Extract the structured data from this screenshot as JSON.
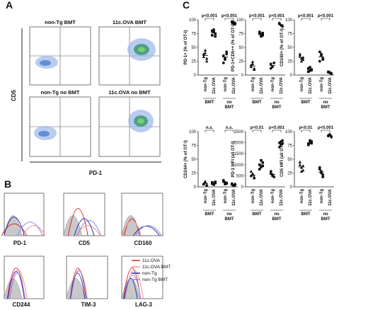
{
  "panel_labels": {
    "a": "A",
    "b": "B",
    "c": "C"
  },
  "flow": {
    "quadrant_titles": [
      "non-Tg BMT",
      "11c.OVA BMT",
      "non-Tg no BMT",
      "11c.OVA no BMT"
    ],
    "y_label": "CD5",
    "x_label": "PD-1"
  },
  "histograms": {
    "markers": [
      "PD-1",
      "CD5",
      "CD160",
      "CD244",
      "TIM-3",
      "LAG-3"
    ],
    "legend": [
      {
        "label": "11c.OVA",
        "color": "#d62728"
      },
      {
        "label": "11c.OVA BMT",
        "color": "#f28e8e"
      },
      {
        "label": "non-Tg",
        "color": "#2b2bb8"
      },
      {
        "label": "non-Tg BMT",
        "color": "#8888dd"
      }
    ]
  },
  "chart_data": [
    {
      "type": "scatter",
      "id": "pd1",
      "ylabel": "PD-1+ (% of OT-I)",
      "ylim": [
        0,
        100
      ],
      "yticks": [
        "0",
        "25",
        "50",
        "75",
        "100"
      ],
      "categories": [
        "non-Tg",
        "11c.OVA",
        "non-Tg",
        "11c.OVA"
      ],
      "groups": [
        "BMT",
        "no BMT"
      ],
      "significance": [
        "p<0.001",
        "p<0.001"
      ],
      "series": [
        {
          "values": [
            [
              38,
              45,
              30,
              33,
              40,
              25
            ],
            [
              80,
              78,
              75,
              72,
              82,
              70
            ],
            [
              35,
              28,
              42,
              22,
              30,
              38
            ],
            [
              95,
              96,
              94,
              97,
              93,
              92
            ]
          ]
        }
      ]
    },
    {
      "type": "scatter",
      "id": "pd1cd5",
      "ylabel": "PD-1+CD5++ (% of OT-I)",
      "ylim": [
        0,
        100
      ],
      "yticks": [
        "0",
        "25",
        "50",
        "75",
        "100"
      ],
      "categories": [
        "non-Tg",
        "11c.OVA",
        "non-Tg",
        "11c.OVA"
      ],
      "groups": [
        "BMT",
        "no BMT"
      ],
      "significance": [
        "p<0.001",
        "p<0.001"
      ],
      "series": [
        {
          "values": [
            [
              15,
              20,
              12,
              18,
              24,
              10
            ],
            [
              75,
              74,
              72,
              78,
              70,
              76
            ],
            [
              20,
              15,
              22,
              12
            ],
            [
              93,
              90,
              88,
              94
            ]
          ]
        }
      ]
    },
    {
      "type": "scatter",
      "id": "cd160",
      "ylabel": "CD160+ (% of OT-I)",
      "ylim": [
        0,
        100
      ],
      "yticks": [
        "0",
        "25",
        "50",
        "75",
        "100"
      ],
      "categories": [
        "non-Tg",
        "11c.OVA",
        "non-Tg",
        "11c.OVA"
      ],
      "groups": [
        "BMT",
        "no BMT"
      ],
      "significance": [
        "p<0.001",
        "p<0.001"
      ],
      "series": [
        {
          "values": [
            [
              35,
              30,
              28,
              38,
              25,
              32
            ],
            [
              12,
              8,
              10,
              6,
              14,
              9
            ],
            [
              42,
              35,
              30,
              25,
              38,
              28
            ],
            [
              5,
              4,
              3,
              6,
              5,
              2
            ]
          ]
        }
      ]
    },
    {
      "type": "scatter",
      "id": "cd244",
      "ylabel": "CD244+ (% of OT-I)",
      "ylim": [
        0,
        100
      ],
      "yticks": [
        "0",
        "25",
        "50",
        "75",
        "100"
      ],
      "categories": [
        "non-Tg",
        "11c.OVA",
        "non-Tg",
        "11c.OVA"
      ],
      "groups": [
        "BMT",
        "no BMT"
      ],
      "significance": [
        "n.s.",
        "n.s."
      ],
      "series": [
        {
          "values": [
            [
              5,
              8,
              4,
              6,
              10,
              3
            ],
            [
              8,
              5,
              7,
              6,
              4,
              9
            ],
            [
              10,
              8,
              6,
              12,
              5,
              7
            ],
            [
              4,
              3,
              5,
              6,
              2,
              3
            ]
          ]
        }
      ]
    },
    {
      "type": "scatter",
      "id": "pd1mfi",
      "ylabel": "PD-1 MFI (all OT-I)",
      "ylim": [
        0,
        2500
      ],
      "yticks": [
        "0",
        "500",
        "1000",
        "1500",
        "2000",
        "2500"
      ],
      "categories": [
        "non-Tg",
        "11c.OVA",
        "non-Tg",
        "11c.OVA"
      ],
      "groups": [
        "BMT",
        "no BMT"
      ],
      "significance": [
        "p<0.01",
        "p<0.001"
      ],
      "series": [
        {
          "values": [
            [
              500,
              600,
              450,
              700,
              550,
              400
            ],
            [
              1000,
              900,
              1100,
              800,
              1200,
              950
            ],
            [
              600,
              500,
              450,
              700,
              550
            ],
            [
              2000,
              1900,
              2100,
              1800,
              2050,
              1950
            ]
          ]
        }
      ]
    },
    {
      "type": "scatter",
      "id": "cd5mfi",
      "ylabel": "CD5 MFI (all OT-I)",
      "ylim": [
        0,
        100
      ],
      "yticks": [
        "0",
        "25",
        "50",
        "75",
        "100"
      ],
      "categories": [
        "non-Tg",
        "11c.OVA",
        "non-Tg",
        "11c.OVA"
      ],
      "groups": [
        "BMT",
        "no BMT"
      ],
      "significance": [
        "p<0.01",
        "p<0.001"
      ],
      "series": [
        {
          "values": [
            [
              40,
              35,
              30,
              45,
              28,
              38
            ],
            [
              78,
              80,
              82,
              76,
              84,
              79
            ],
            [
              32,
              25,
              22,
              35,
              28,
              18
            ],
            [
              92,
              94,
              90,
              93,
              95,
              91
            ]
          ]
        }
      ]
    }
  ]
}
